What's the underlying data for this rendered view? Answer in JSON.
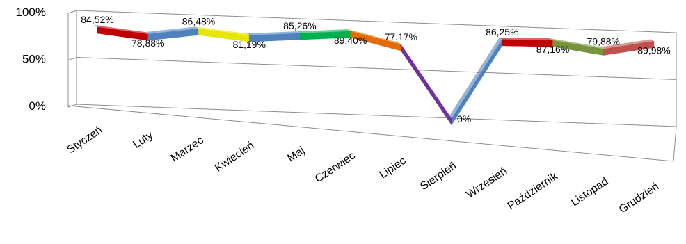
{
  "chart_data": {
    "type": "line",
    "categories": [
      "Styczeń",
      "Luty",
      "Marzec",
      "Kwiecień",
      "Maj",
      "Czerwiec",
      "Lipiec",
      "Sierpień",
      "Wrzesień",
      "Październik",
      "Listopad",
      "Grudzień"
    ],
    "values": [
      84.52,
      78.88,
      86.48,
      81.19,
      85.26,
      89.4,
      77.17,
      0,
      86.25,
      87.16,
      79.88,
      89.98
    ],
    "data_labels": [
      "84,52%",
      "78,88%",
      "86,48%",
      "81,19%",
      "85,26%",
      "89,40%",
      "77,17%",
      "0%",
      "86,25%",
      "87,16%",
      "79,88%",
      "89,98%"
    ],
    "y_ticks": [
      "0%",
      "50%",
      "100%"
    ],
    "ylim": [
      0,
      100
    ],
    "segment_colors": [
      "#c00000",
      "#4f81bd",
      "#e6e600",
      "#4f81bd",
      "#00b050",
      "#e36c09",
      "#7030a0",
      "#4f81bd",
      "#c00000",
      "#77933c",
      "#c0504d",
      "#8b3a0f"
    ],
    "grid": true,
    "legend": "none",
    "title": "",
    "xlabel": "",
    "ylabel": ""
  }
}
